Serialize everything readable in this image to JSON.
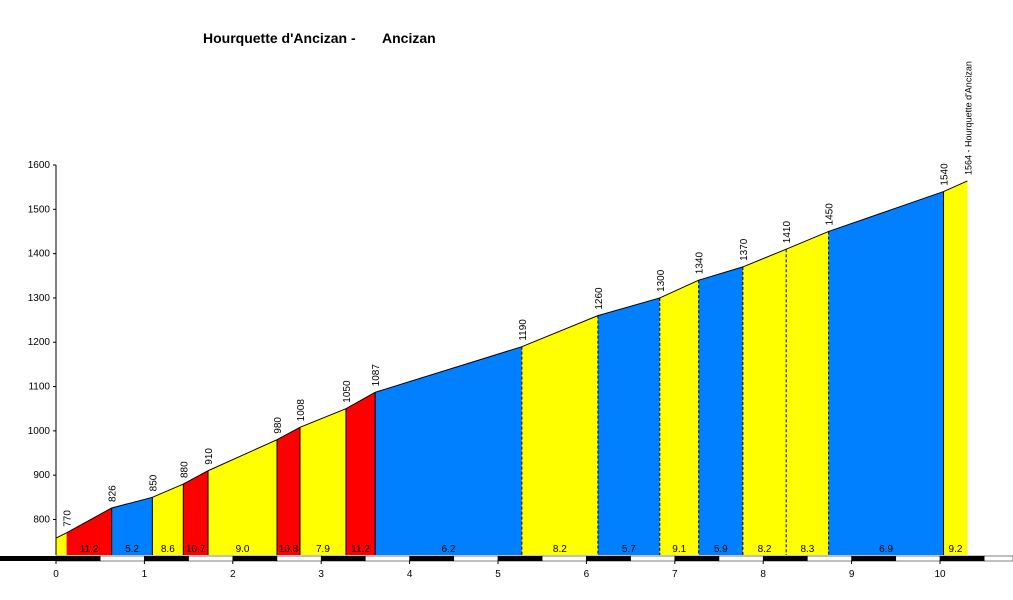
{
  "title_left": "Hourquette d'Ancizan -",
  "title_right": "Ancizan",
  "chart_data": {
    "type": "area",
    "xlim": [
      0,
      10.25
    ],
    "ylim": [
      720,
      1600
    ],
    "x_ticks": [
      0,
      1,
      2,
      3,
      4,
      5,
      6,
      7,
      8,
      9,
      10
    ],
    "y_ticks": [
      800,
      900,
      1000,
      1100,
      1200,
      1300,
      1400,
      1500,
      1600
    ],
    "summit_label": "1564 - Hourquette d'Ancizan",
    "start_elevation": 758,
    "segments": [
      {
        "x0": 0.0,
        "x1": 0.12,
        "y0": 758,
        "y1": 770,
        "grade": "",
        "color": "#ffff00",
        "end_label": "770",
        "divider": "none"
      },
      {
        "x0": 0.12,
        "x1": 0.63,
        "y0": 770,
        "y1": 826,
        "grade": "11.2",
        "color": "#ff0000",
        "end_label": "826",
        "divider": "solid"
      },
      {
        "x0": 0.63,
        "x1": 1.09,
        "y0": 826,
        "y1": 850,
        "grade": "5.2",
        "color": "#0080ff",
        "end_label": "850",
        "divider": "solid"
      },
      {
        "x0": 1.09,
        "x1": 1.44,
        "y0": 850,
        "y1": 880,
        "grade": "8.6",
        "color": "#ffff00",
        "end_label": "880",
        "divider": "solid"
      },
      {
        "x0": 1.44,
        "x1": 1.72,
        "y0": 880,
        "y1": 910,
        "grade": "10.7",
        "color": "#ff0000",
        "end_label": "910",
        "divider": "solid"
      },
      {
        "x0": 1.72,
        "x1": 2.5,
        "y0": 910,
        "y1": 980,
        "grade": "9.0",
        "color": "#ffff00",
        "end_label": "980",
        "divider": "solid"
      },
      {
        "x0": 2.5,
        "x1": 2.76,
        "y0": 980,
        "y1": 1008,
        "grade": "10.8",
        "color": "#ff0000",
        "end_label": "1008",
        "divider": "solid"
      },
      {
        "x0": 2.76,
        "x1": 3.28,
        "y0": 1008,
        "y1": 1050,
        "grade": "7.9",
        "color": "#ffff00",
        "end_label": "1050",
        "divider": "solid"
      },
      {
        "x0": 3.28,
        "x1": 3.61,
        "y0": 1050,
        "y1": 1087,
        "grade": "11.2",
        "color": "#ff0000",
        "end_label": "1087",
        "divider": "solid"
      },
      {
        "x0": 3.61,
        "x1": 5.27,
        "y0": 1087,
        "y1": 1190,
        "grade": "6.2",
        "color": "#0080ff",
        "end_label": "1190",
        "divider": "dashed"
      },
      {
        "x0": 5.27,
        "x1": 6.13,
        "y0": 1190,
        "y1": 1260,
        "grade": "8.2",
        "color": "#ffff00",
        "end_label": "1260",
        "divider": "dashed"
      },
      {
        "x0": 6.13,
        "x1": 6.83,
        "y0": 1260,
        "y1": 1300,
        "grade": "5.7",
        "color": "#0080ff",
        "end_label": "1300",
        "divider": "dashed"
      },
      {
        "x0": 6.83,
        "x1": 7.27,
        "y0": 1300,
        "y1": 1340,
        "grade": "9.1",
        "color": "#ffff00",
        "end_label": "1340",
        "divider": "dashed"
      },
      {
        "x0": 7.27,
        "x1": 7.77,
        "y0": 1340,
        "y1": 1370,
        "grade": "5.9",
        "color": "#0080ff",
        "end_label": "1370",
        "divider": "dashed"
      },
      {
        "x0": 7.77,
        "x1": 8.26,
        "y0": 1370,
        "y1": 1410,
        "grade": "8.2",
        "color": "#ffff00",
        "end_label": "1410",
        "divider": "dashed"
      },
      {
        "x0": 8.26,
        "x1": 8.74,
        "y0": 1410,
        "y1": 1450,
        "grade": "8.3",
        "color": "#ffff00",
        "end_label": "1450",
        "divider": "dashed"
      },
      {
        "x0": 8.74,
        "x1": 10.04,
        "y0": 1450,
        "y1": 1540,
        "grade": "6.9",
        "color": "#0080ff",
        "end_label": "1540",
        "divider": "solid"
      },
      {
        "x0": 10.04,
        "x1": 10.31,
        "y0": 1540,
        "y1": 1564,
        "grade": "9.2",
        "color": "#ffff00",
        "end_label": "",
        "divider": "dashed"
      }
    ]
  }
}
